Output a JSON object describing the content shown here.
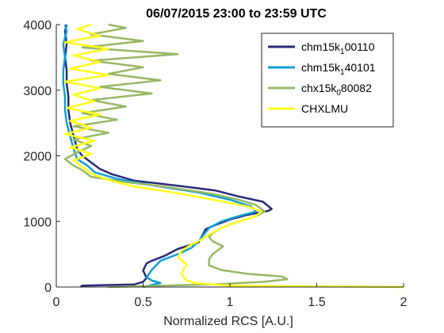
{
  "chart_data": {
    "type": "line",
    "title": "06/07/2015 23:00 to 23:59 UTC",
    "xlabel": "Normalized RCS [A.U.]",
    "ylabel": "",
    "xlim": [
      0,
      2
    ],
    "ylim": [
      0,
      4000
    ],
    "xticks": [
      "0",
      "0.5",
      "1",
      "1.5",
      "2"
    ],
    "yticks": [
      "0",
      "1000",
      "2000",
      "3000",
      "4000"
    ],
    "grid": false,
    "legend_position": "top-right",
    "series": [
      {
        "label_main": "chm15k",
        "label_sub": "1",
        "label_end": "00110",
        "color": "#2b2a7a",
        "points": [
          [
            0.14,
            0
          ],
          [
            0.15,
            20
          ],
          [
            0.45,
            40
          ],
          [
            0.5,
            80
          ],
          [
            0.52,
            140
          ],
          [
            0.5,
            250
          ],
          [
            0.52,
            360
          ],
          [
            0.55,
            400
          ],
          [
            0.62,
            470
          ],
          [
            0.7,
            580
          ],
          [
            0.82,
            680
          ],
          [
            0.84,
            780
          ],
          [
            0.86,
            880
          ],
          [
            0.92,
            950
          ],
          [
            1.0,
            1030
          ],
          [
            1.1,
            1100
          ],
          [
            1.22,
            1160
          ],
          [
            1.24,
            1190
          ],
          [
            1.19,
            1300
          ],
          [
            1.05,
            1380
          ],
          [
            0.92,
            1470
          ],
          [
            0.68,
            1550
          ],
          [
            0.45,
            1620
          ],
          [
            0.32,
            1720
          ],
          [
            0.25,
            1800
          ],
          [
            0.2,
            1900
          ],
          [
            0.15,
            2000
          ],
          [
            0.12,
            2100
          ],
          [
            0.1,
            2300
          ],
          [
            0.08,
            2500
          ],
          [
            0.07,
            2700
          ],
          [
            0.07,
            2900
          ],
          [
            0.06,
            3100
          ],
          [
            0.06,
            3300
          ],
          [
            0.05,
            3500
          ],
          [
            0.06,
            3700
          ],
          [
            0.05,
            3900
          ],
          [
            0.06,
            4000
          ]
        ]
      },
      {
        "label_main": "chm15k",
        "label_sub": "1",
        "label_end": "40101",
        "color": "#0e9fd6",
        "points": [
          [
            0.5,
            0
          ],
          [
            0.55,
            30
          ],
          [
            0.6,
            60
          ],
          [
            0.55,
            100
          ],
          [
            0.52,
            150
          ],
          [
            0.55,
            260
          ],
          [
            0.6,
            400
          ],
          [
            0.7,
            500
          ],
          [
            0.78,
            600
          ],
          [
            0.82,
            700
          ],
          [
            0.85,
            800
          ],
          [
            0.88,
            900
          ],
          [
            0.95,
            1000
          ],
          [
            1.05,
            1080
          ],
          [
            1.15,
            1150
          ],
          [
            1.12,
            1230
          ],
          [
            1.0,
            1330
          ],
          [
            0.82,
            1440
          ],
          [
            0.55,
            1550
          ],
          [
            0.35,
            1650
          ],
          [
            0.22,
            1750
          ],
          [
            0.18,
            1850
          ],
          [
            0.12,
            1950
          ],
          [
            0.1,
            2100
          ],
          [
            0.08,
            2300
          ],
          [
            0.06,
            2500
          ],
          [
            0.05,
            2700
          ],
          [
            0.05,
            2900
          ],
          [
            0.04,
            3100
          ],
          [
            0.04,
            3300
          ],
          [
            0.05,
            3500
          ],
          [
            0.04,
            3700
          ],
          [
            0.06,
            3900
          ],
          [
            0.05,
            4000
          ]
        ]
      },
      {
        "label_main": "chx15k",
        "label_sub": "0",
        "label_end": "80082",
        "color": "#98b865",
        "points": [
          [
            0.3,
            0
          ],
          [
            0.9,
            40
          ],
          [
            1.2,
            80
          ],
          [
            1.33,
            120
          ],
          [
            1.3,
            160
          ],
          [
            1.1,
            200
          ],
          [
            0.95,
            260
          ],
          [
            0.88,
            330
          ],
          [
            0.88,
            420
          ],
          [
            0.9,
            500
          ],
          [
            0.93,
            560
          ],
          [
            0.96,
            620
          ],
          [
            0.9,
            700
          ],
          [
            0.88,
            760
          ],
          [
            0.9,
            820
          ],
          [
            0.95,
            900
          ],
          [
            1.05,
            1000
          ],
          [
            1.15,
            1080
          ],
          [
            1.2,
            1150
          ],
          [
            1.15,
            1250
          ],
          [
            1.05,
            1330
          ],
          [
            0.9,
            1420
          ],
          [
            0.65,
            1520
          ],
          [
            0.4,
            1600
          ],
          [
            0.2,
            1680
          ],
          [
            0.15,
            1780
          ],
          [
            0.1,
            1850
          ],
          [
            0.05,
            1950
          ],
          [
            0.12,
            2050
          ],
          [
            0.2,
            2150
          ],
          [
            0.1,
            2250
          ],
          [
            0.3,
            2350
          ],
          [
            0.1,
            2450
          ],
          [
            0.35,
            2550
          ],
          [
            0.15,
            2650
          ],
          [
            0.4,
            2750
          ],
          [
            0.2,
            2850
          ],
          [
            0.55,
            2950
          ],
          [
            0.25,
            3050
          ],
          [
            0.6,
            3150
          ],
          [
            0.3,
            3250
          ],
          [
            0.5,
            3350
          ],
          [
            0.2,
            3450
          ],
          [
            0.7,
            3550
          ],
          [
            0.15,
            3650
          ],
          [
            0.5,
            3750
          ],
          [
            0.2,
            3850
          ],
          [
            0.4,
            3950
          ],
          [
            0.3,
            4000
          ]
        ]
      },
      {
        "label_main": "CHXLMU",
        "label_sub": "",
        "label_end": "",
        "color": "#ffff1a",
        "points": [
          [
            2.0,
            0
          ],
          [
            1.0,
            20
          ],
          [
            0.8,
            60
          ],
          [
            0.75,
            100
          ],
          [
            0.72,
            200
          ],
          [
            0.75,
            350
          ],
          [
            0.7,
            450
          ],
          [
            0.72,
            550
          ],
          [
            0.78,
            650
          ],
          [
            0.82,
            700
          ],
          [
            0.88,
            800
          ],
          [
            0.95,
            900
          ],
          [
            1.05,
            1000
          ],
          [
            1.15,
            1080
          ],
          [
            1.18,
            1150
          ],
          [
            1.1,
            1230
          ],
          [
            0.9,
            1330
          ],
          [
            0.7,
            1430
          ],
          [
            0.45,
            1530
          ],
          [
            0.3,
            1630
          ],
          [
            0.2,
            1730
          ],
          [
            0.15,
            1830
          ],
          [
            0.1,
            1930
          ],
          [
            0.2,
            2030
          ],
          [
            0.08,
            2130
          ],
          [
            0.22,
            2230
          ],
          [
            0.05,
            2330
          ],
          [
            0.2,
            2430
          ],
          [
            0.08,
            2530
          ],
          [
            0.25,
            2630
          ],
          [
            0.06,
            2730
          ],
          [
            0.22,
            2830
          ],
          [
            0.1,
            2930
          ],
          [
            0.25,
            3030
          ],
          [
            0.05,
            3130
          ],
          [
            0.3,
            3230
          ],
          [
            0.08,
            3330
          ],
          [
            0.25,
            3430
          ],
          [
            0.1,
            3530
          ],
          [
            0.3,
            3630
          ],
          [
            0.05,
            3730
          ],
          [
            0.25,
            3830
          ],
          [
            0.12,
            3930
          ],
          [
            0.2,
            4000
          ]
        ]
      }
    ]
  }
}
